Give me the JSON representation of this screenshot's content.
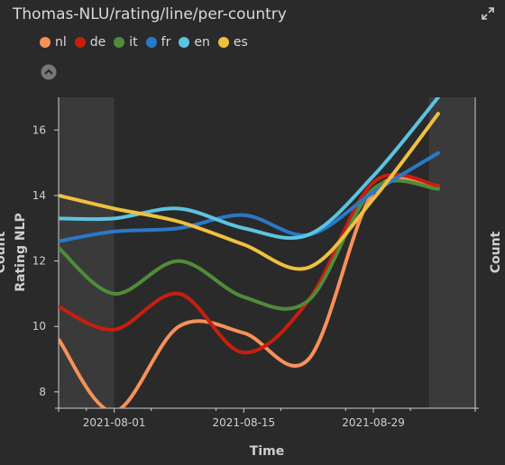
{
  "header": {
    "title": "Thomas-NLU/rating/line/per-country",
    "expand_icon": "expand-icon",
    "collapse_icon": "chevron-up-icon"
  },
  "chart_data": {
    "type": "line",
    "xlabel": "Time",
    "ylabel": "Rating NLP",
    "y2label": "Count",
    "ylabel_left_cut": "Count",
    "ylim": [
      7.5,
      17
    ],
    "xlim": [
      "2021-07-26",
      "2021-09-09"
    ],
    "x_ticks": [
      "2021-08-01",
      "2021-08-15",
      "2021-08-29"
    ],
    "y_ticks": [
      8,
      10,
      12,
      14,
      16
    ],
    "shaded_ranges": [
      [
        "2021-07-26",
        "2021-08-01"
      ],
      [
        "2021-09-04",
        "2021-09-09"
      ]
    ],
    "grid": false,
    "legend_position": "top-left",
    "x": [
      "2021-07-26",
      "2021-08-01",
      "2021-08-08",
      "2021-08-15",
      "2021-08-22",
      "2021-08-29",
      "2021-09-05"
    ],
    "series": [
      {
        "name": "nl",
        "color": "#f7915a",
        "values": [
          9.6,
          7.4,
          10.0,
          9.8,
          9.0,
          14.1,
          14.3
        ]
      },
      {
        "name": "de",
        "color": "#c81e0f",
        "values": [
          10.6,
          9.9,
          11.0,
          9.2,
          10.8,
          14.4,
          14.3
        ]
      },
      {
        "name": "it",
        "color": "#4e8c3a",
        "values": [
          12.4,
          11.0,
          12.0,
          10.9,
          10.8,
          14.2,
          14.2
        ]
      },
      {
        "name": "fr",
        "color": "#2a78c8",
        "values": [
          12.6,
          12.9,
          13.0,
          13.4,
          12.8,
          14.1,
          15.3
        ]
      },
      {
        "name": "en",
        "color": "#5bc4e0",
        "values": [
          13.3,
          13.3,
          13.6,
          13.0,
          12.8,
          14.6,
          17.0
        ]
      },
      {
        "name": "es",
        "color": "#f0c040",
        "values": [
          14.0,
          13.6,
          13.2,
          12.5,
          11.8,
          13.9,
          16.5
        ]
      }
    ]
  }
}
